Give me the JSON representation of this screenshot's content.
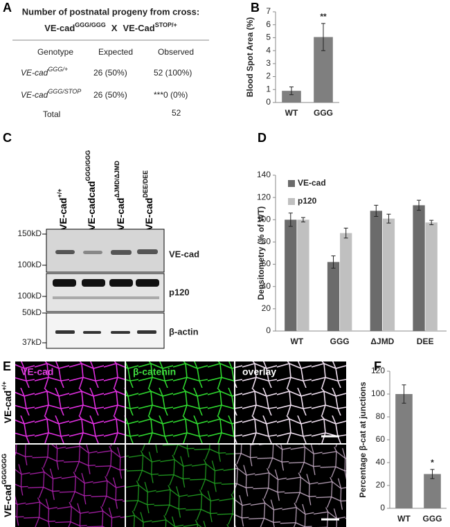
{
  "panel_labels": [
    "A",
    "B",
    "C",
    "D",
    "E",
    "F"
  ],
  "table": {
    "title": "Number of postnatal progeny from cross:",
    "cross": {
      "left": {
        "base": "VE-cad",
        "sup": "GGG/GGG"
      },
      "operator": "X",
      "right": {
        "base": "VE-Cad",
        "sup": "STOP/+"
      }
    },
    "header": [
      "Genotype",
      "Expected",
      "Observed"
    ],
    "rows": [
      {
        "genotype": {
          "base": "VE-cad",
          "sup": "GGG/+"
        },
        "expected": "26 (50%)",
        "observed": "52 (100%)"
      },
      {
        "genotype": {
          "base": "VE-cad",
          "sup": "GGG/STOP"
        },
        "expected": "26 (50%)",
        "observed": "***0 (0%)"
      },
      {
        "genotype": "Total",
        "observed": "52"
      }
    ]
  },
  "blot": {
    "lanes": [
      {
        "base": "VE-cad",
        "sup": "+/+"
      },
      {
        "base": "VE-cadcad",
        "sup": "GGG/GGG"
      },
      {
        "base": "VE-cad",
        "sup": "ΔJMD/ΔJMD"
      },
      {
        "base": "VE-cad",
        "sup": "DEE/DEE"
      }
    ],
    "markers": [
      "150kD",
      "100kD",
      "100kD",
      "50kD",
      "37kD"
    ],
    "proteins": [
      "VE-cad",
      "p120",
      "β-actin"
    ]
  },
  "micrographs": {
    "channels": [
      "VE-cad",
      "β-catenin",
      "overlay"
    ],
    "rows": [
      {
        "base": "VE-cad",
        "sup": "+/+"
      },
      {
        "base": "VE-cad",
        "sup": "GGG/GGG"
      }
    ]
  },
  "chart_data": [
    {
      "type": "bar",
      "ylabel": "Blood Spot Area (%)",
      "categories": [
        "WT",
        "GGG"
      ],
      "values": [
        0.9,
        5.05
      ],
      "errors": [
        0.3,
        1.05
      ],
      "color": "#7f7f7f",
      "ylim": [
        0,
        7
      ],
      "yticks": [
        0,
        1,
        2,
        3,
        4,
        5,
        6,
        7
      ],
      "grid": false,
      "annotations": [
        "**"
      ]
    },
    {
      "type": "bar",
      "ylabel": "Densitometry (% of WT)",
      "categories": [
        "WT",
        "GGG",
        "ΔJMD",
        "DEE"
      ],
      "series": [
        {
          "name": "VE-cad",
          "color": "#6b6b6b",
          "values": [
            100,
            62,
            108,
            113
          ],
          "errors": [
            6,
            5.5,
            5,
            4.5
          ]
        },
        {
          "name": "p120",
          "color": "#c0c0c0",
          "values": [
            100,
            88,
            101,
            97.5
          ],
          "errors": [
            2,
            4.5,
            4,
            2
          ]
        }
      ],
      "ylim": [
        0,
        140
      ],
      "yticks": [
        0,
        20,
        40,
        60,
        80,
        100,
        120,
        140
      ],
      "grid": false,
      "legend": "upper left"
    },
    {
      "type": "bar",
      "ylabel": "Percentage β-cat at junctions",
      "categories": [
        "WT",
        "GGG"
      ],
      "values": [
        100,
        30
      ],
      "errors": [
        8,
        4
      ],
      "color": "#7f7f7f",
      "ylim": [
        0,
        120
      ],
      "yticks": [
        0,
        20,
        40,
        60,
        80,
        100,
        120
      ],
      "grid": false,
      "annotations": [
        "*"
      ]
    }
  ]
}
